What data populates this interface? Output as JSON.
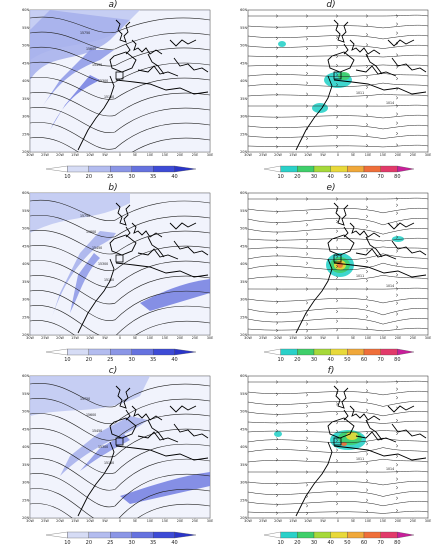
{
  "panels": [
    {
      "id": "a",
      "label": "a)",
      "kind": "wind"
    },
    {
      "id": "d",
      "label": "d)",
      "kind": "precip"
    },
    {
      "id": "b",
      "label": "b)",
      "kind": "wind"
    },
    {
      "id": "e",
      "label": "e)",
      "kind": "precip"
    },
    {
      "id": "c",
      "label": "c)",
      "kind": "wind"
    },
    {
      "id": "f",
      "label": "f)",
      "kind": "precip"
    }
  ],
  "axes": {
    "lat_ticks": [
      "60N",
      "55N",
      "50N",
      "45N",
      "40N",
      "35N",
      "30N",
      "25N",
      "20N"
    ],
    "lon_ticks": [
      "30W",
      "25W",
      "20W",
      "15W",
      "10W",
      "5W",
      "0",
      "5E",
      "10E",
      "15E",
      "20E",
      "25E",
      "30E"
    ]
  },
  "colorbars": {
    "wind": {
      "labels": [
        "10",
        "20",
        "25",
        "30",
        "35",
        "40"
      ],
      "colors": [
        "#ffffff",
        "#d6dcf5",
        "#b3bcef",
        "#8b96e6",
        "#6572df",
        "#3d4bd6",
        "#2a35c8"
      ]
    },
    "precip": {
      "labels": [
        "10",
        "20",
        "30",
        "40",
        "50",
        "60",
        "70",
        "80"
      ],
      "colors": [
        "#ffffff",
        "#2ad1c9",
        "#3fcf6a",
        "#a6d93a",
        "#e8d93a",
        "#f0a83a",
        "#ef6f3a",
        "#e23a6a",
        "#c81f9a"
      ]
    }
  },
  "contour_labels": {
    "a": [
      "15750",
      "15600",
      "15450",
      "15300",
      "15150"
    ],
    "b": [
      "15750",
      "15600",
      "15450",
      "15300",
      "15150"
    ],
    "c": [
      "15750",
      "15600",
      "15450",
      "15300",
      "15150"
    ],
    "d": [
      "1011",
      "1014"
    ],
    "e": [
      "1011",
      "1014"
    ],
    "f": [
      "1011",
      "1014"
    ]
  }
}
